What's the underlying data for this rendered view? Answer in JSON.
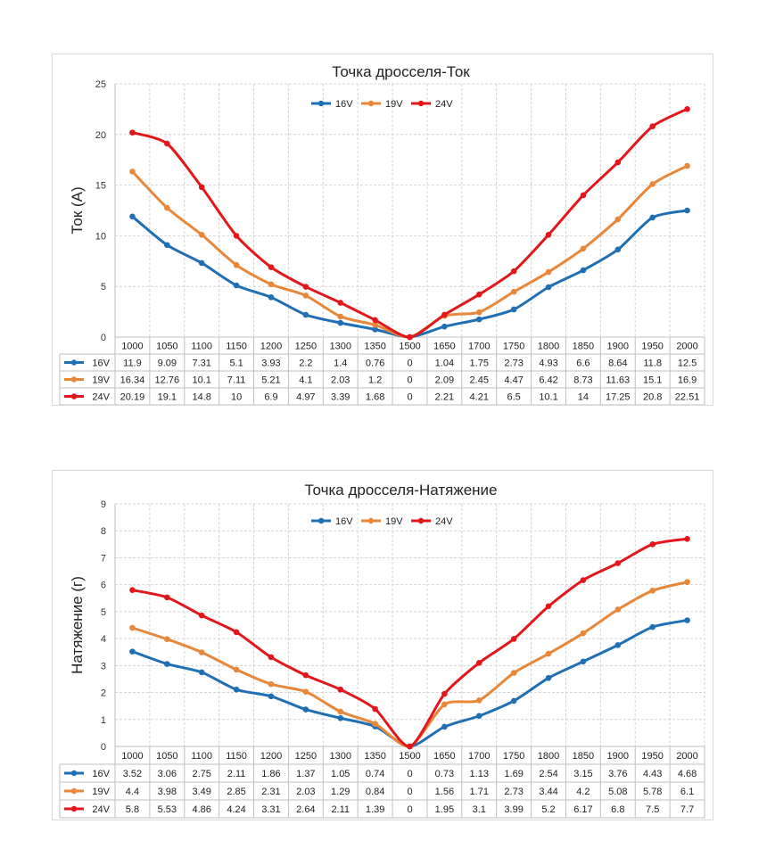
{
  "chart_data": [
    {
      "type": "line",
      "title": "Точка дросселя-Ток",
      "ylabel": "Ток  (А)",
      "xlabel": "",
      "ylim": [
        0,
        25
      ],
      "yticks": [
        0,
        5,
        10,
        15,
        20,
        25
      ],
      "grid": true,
      "legend": "top-center",
      "categories": [
        "1000",
        "1050",
        "1100",
        "1150",
        "1200",
        "1250",
        "1300",
        "1350",
        "1500",
        "1650",
        "1700",
        "1750",
        "1800",
        "1850",
        "1900",
        "1950",
        "2000"
      ],
      "series": [
        {
          "name": "16V",
          "color": "#1f6fb5",
          "values": [
            11.9,
            9.09,
            7.31,
            5.1,
            3.93,
            2.2,
            1.4,
            0.76,
            0,
            1.04,
            1.75,
            2.73,
            4.93,
            6.6,
            8.64,
            11.8,
            12.5
          ]
        },
        {
          "name": "19V",
          "color": "#e8863a",
          "values": [
            16.34,
            12.76,
            10.1,
            7.11,
            5.21,
            4.1,
            2.03,
            1.2,
            0,
            2.09,
            2.45,
            4.47,
            6.42,
            8.73,
            11.63,
            15.1,
            16.9
          ]
        },
        {
          "name": "24V",
          "color": "#e3161b",
          "values": [
            20.19,
            19.1,
            14.8,
            10,
            6.9,
            4.97,
            3.39,
            1.68,
            0,
            2.21,
            4.21,
            6.5,
            10.1,
            14,
            17.25,
            20.8,
            22.51
          ]
        }
      ]
    },
    {
      "type": "line",
      "title": "Точка дросселя-Натяжение",
      "ylabel": "Натяжение  (г)",
      "xlabel": "",
      "ylim": [
        0,
        9
      ],
      "yticks": [
        0,
        1,
        2,
        3,
        4,
        5,
        6,
        7,
        8,
        9
      ],
      "grid": true,
      "legend": "top-center",
      "categories": [
        "1000",
        "1050",
        "1100",
        "1150",
        "1200",
        "1250",
        "1300",
        "1350",
        "1500",
        "1650",
        "1700",
        "1750",
        "1800",
        "1850",
        "1900",
        "1950",
        "2000"
      ],
      "series": [
        {
          "name": "16V",
          "color": "#1f6fb5",
          "values": [
            3.52,
            3.06,
            2.75,
            2.11,
            1.86,
            1.37,
            1.05,
            0.74,
            0,
            0.73,
            1.13,
            1.69,
            2.54,
            3.15,
            3.76,
            4.43,
            4.68
          ]
        },
        {
          "name": "19V",
          "color": "#e8863a",
          "values": [
            4.4,
            3.98,
            3.49,
            2.85,
            2.31,
            2.03,
            1.29,
            0.84,
            0,
            1.56,
            1.71,
            2.73,
            3.44,
            4.2,
            5.08,
            5.78,
            6.1
          ]
        },
        {
          "name": "24V",
          "color": "#e3161b",
          "values": [
            5.8,
            5.53,
            4.86,
            4.24,
            3.31,
            2.64,
            2.11,
            1.39,
            0,
            1.95,
            3.1,
            3.99,
            5.2,
            6.17,
            6.8,
            7.5,
            7.7
          ]
        }
      ]
    }
  ]
}
